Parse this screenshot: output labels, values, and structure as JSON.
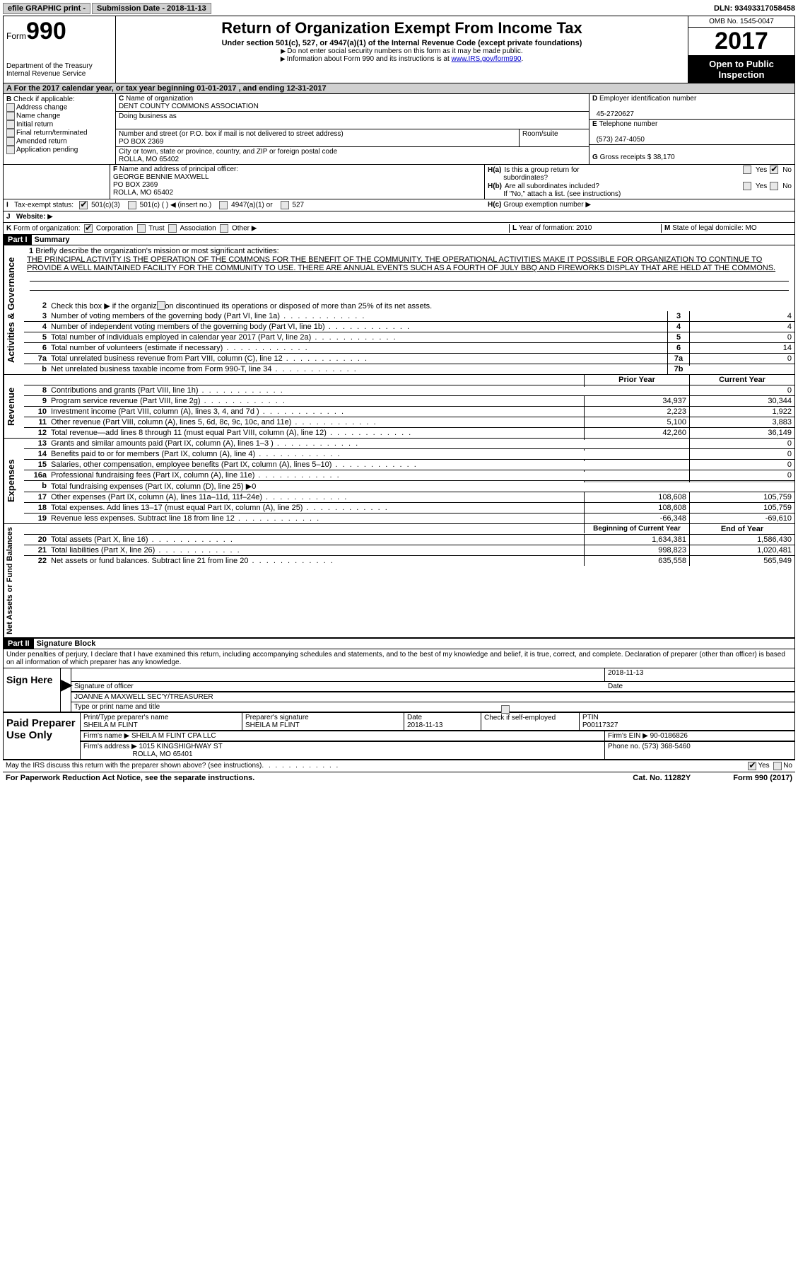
{
  "topbar": {
    "efile": "efile GRAPHIC print -",
    "sub_label": "Submission Date -",
    "sub_date": "2018-11-13",
    "dln_label": "DLN:",
    "dln": "93493317058458"
  },
  "header": {
    "form_prefix": "Form",
    "form_number": "990",
    "dept1": "Department of the Treasury",
    "dept2": "Internal Revenue Service",
    "title": "Return of Organization Exempt From Income Tax",
    "subtitle": "Under section 501(c), 527, or 4947(a)(1) of the Internal Revenue Code (except private foundations)",
    "note1": "Do not enter social security numbers on this form as it may be made public.",
    "note2_pre": "Information about Form 990 and its instructions is at ",
    "note2_link": "www.IRS.gov/form990",
    "omb": "OMB No. 1545-0047",
    "year": "2017",
    "open1": "Open to Public",
    "open2": "Inspection"
  },
  "A": {
    "text": "For the 2017 calendar year, or tax year beginning 01-01-2017   , and ending 12-31-2017"
  },
  "B": {
    "label": "Check if applicable:",
    "items": [
      "Address change",
      "Name change",
      "Initial return",
      "Final return/terminated",
      "Amended return",
      "Application pending"
    ]
  },
  "C": {
    "name_label": "Name of organization",
    "name": "DENT COUNTY COMMONS ASSOCIATION",
    "dba_label": "Doing business as",
    "street_label": "Number and street (or P.O. box if mail is not delivered to street address)",
    "room_label": "Room/suite",
    "street": "PO BOX 2369",
    "city_label": "City or town, state or province, country, and ZIP or foreign postal code",
    "city": "ROLLA, MO  65402"
  },
  "D": {
    "label": "Employer identification number",
    "value": "45-2720627"
  },
  "E": {
    "label": "Telephone number",
    "value": "(573) 247-4050"
  },
  "G": {
    "label": "Gross receipts $",
    "value": "38,170"
  },
  "F": {
    "label": "Name and address of principal officer:",
    "line1": "GEORGE BENNIE MAXWELL",
    "line2": "PO BOX 2369",
    "line3": "ROLLA, MO  65402"
  },
  "H": {
    "a": "Is this a group return for",
    "a2": "subordinates?",
    "b": "Are all subordinates included?",
    "b_note": "If \"No,\" attach a list. (see instructions)",
    "c": "Group exemption number",
    "yes": "Yes",
    "no": "No"
  },
  "I": {
    "label": "Tax-exempt status:",
    "opts": [
      "501(c)(3)",
      "501(c) (  ) ◀ (insert no.)",
      "4947(a)(1) or",
      "527"
    ]
  },
  "J": {
    "label": "Website:"
  },
  "K": {
    "label": "Form of organization:",
    "opts": [
      "Corporation",
      "Trust",
      "Association",
      "Other"
    ]
  },
  "L": {
    "label": "Year of formation:",
    "value": "2010"
  },
  "M": {
    "label": "State of legal domicile:",
    "value": "MO"
  },
  "partI": {
    "head": "Part I",
    "title": "Summary",
    "sec_gov": "Activities & Governance",
    "sec_rev": "Revenue",
    "sec_exp": "Expenses",
    "sec_net": "Net Assets or Fund Balances",
    "line1_label": "Briefly describe the organization's mission or most significant activities:",
    "mission": "THE PRINCIPAL ACTIVITY IS THE OPERATION OF THE COMMONS FOR THE BENEFIT OF THE COMMUNITY. THE OPERATIONAL ACTIVITIES MAKE IT POSSIBLE FOR ORGANIZATION TO CONTINUE TO PROVIDE A WELL MAINTAINED FACILITY FOR THE COMMUNITY TO USE. THERE ARE ANNUAL EVENTS SUCH AS A FOURTH OF JULY BBQ AND FIREWORKS DISPLAY THAT ARE HELD AT THE COMMONS.",
    "line2": "Check this box ▶        if the organization discontinued its operations or disposed of more than 25% of its net assets.",
    "lines_gov": [
      {
        "n": "3",
        "d": "Number of voting members of the governing body (Part VI, line 1a)",
        "box": "3",
        "v": "4"
      },
      {
        "n": "4",
        "d": "Number of independent voting members of the governing body (Part VI, line 1b)",
        "box": "4",
        "v": "4"
      },
      {
        "n": "5",
        "d": "Total number of individuals employed in calendar year 2017 (Part V, line 2a)",
        "box": "5",
        "v": "0"
      },
      {
        "n": "6",
        "d": "Total number of volunteers (estimate if necessary)",
        "box": "6",
        "v": "14"
      },
      {
        "n": "7a",
        "d": "Total unrelated business revenue from Part VIII, column (C), line 12",
        "box": "7a",
        "v": "0"
      },
      {
        "n": "b",
        "d": "Net unrelated business taxable income from Form 990-T, line 34",
        "box": "7b",
        "v": ""
      }
    ],
    "col_prior": "Prior Year",
    "col_curr": "Current Year",
    "lines_rev": [
      {
        "n": "8",
        "d": "Contributions and grants (Part VIII, line 1h)",
        "p": "",
        "c": "0"
      },
      {
        "n": "9",
        "d": "Program service revenue (Part VIII, line 2g)",
        "p": "34,937",
        "c": "30,344"
      },
      {
        "n": "10",
        "d": "Investment income (Part VIII, column (A), lines 3, 4, and 7d )",
        "p": "2,223",
        "c": "1,922"
      },
      {
        "n": "11",
        "d": "Other revenue (Part VIII, column (A), lines 5, 6d, 8c, 9c, 10c, and 11e)",
        "p": "5,100",
        "c": "3,883"
      },
      {
        "n": "12",
        "d": "Total revenue—add lines 8 through 11 (must equal Part VIII, column (A), line 12)",
        "p": "42,260",
        "c": "36,149"
      }
    ],
    "lines_exp": [
      {
        "n": "13",
        "d": "Grants and similar amounts paid (Part IX, column (A), lines 1–3 )",
        "p": "",
        "c": "0"
      },
      {
        "n": "14",
        "d": "Benefits paid to or for members (Part IX, column (A), line 4)",
        "p": "",
        "c": "0"
      },
      {
        "n": "15",
        "d": "Salaries, other compensation, employee benefits (Part IX, column (A), lines 5–10)",
        "p": "",
        "c": "0"
      },
      {
        "n": "16a",
        "d": "Professional fundraising fees (Part IX, column (A), line 11e)",
        "p": "",
        "c": "0"
      },
      {
        "n": "b",
        "d": "Total fundraising expenses (Part IX, column (D), line 25) ▶0",
        "p": "GREY",
        "c": "GREY"
      },
      {
        "n": "17",
        "d": "Other expenses (Part IX, column (A), lines 11a–11d, 11f–24e)",
        "p": "108,608",
        "c": "105,759"
      },
      {
        "n": "18",
        "d": "Total expenses. Add lines 13–17 (must equal Part IX, column (A), line 25)",
        "p": "108,608",
        "c": "105,759"
      },
      {
        "n": "19",
        "d": "Revenue less expenses. Subtract line 18 from line 12",
        "p": "-66,348",
        "c": "-69,610"
      }
    ],
    "col_beg": "Beginning of Current Year",
    "col_end": "End of Year",
    "lines_net": [
      {
        "n": "20",
        "d": "Total assets (Part X, line 16)",
        "p": "1,634,381",
        "c": "1,586,430"
      },
      {
        "n": "21",
        "d": "Total liabilities (Part X, line 26)",
        "p": "998,823",
        "c": "1,020,481"
      },
      {
        "n": "22",
        "d": "Net assets or fund balances. Subtract line 21 from line 20",
        "p": "635,558",
        "c": "565,949"
      }
    ]
  },
  "partII": {
    "head": "Part II",
    "title": "Signature Block",
    "perjury": "Under penalties of perjury, I declare that I have examined this return, including accompanying schedules and statements, and to the best of my knowledge and belief, it is true, correct, and complete. Declaration of preparer (other than officer) is based on all information of which preparer has any knowledge.",
    "sign_here": "Sign Here",
    "sig_officer_label": "Signature of officer",
    "date": "2018-11-13",
    "date_label": "Date",
    "officer_name": "JOANNE A MAXWELL SEC'Y/TREASURER",
    "officer_name_label": "Type or print name and title",
    "paid": "Paid Preparer Use Only",
    "prep_name_label": "Print/Type preparer's name",
    "prep_name": "SHEILA M FLINT",
    "prep_sig_label": "Preparer's signature",
    "prep_sig": "SHEILA M FLINT",
    "prep_date_label": "Date",
    "prep_date": "2018-11-13",
    "self_emp": "Check        if self-employed",
    "ptin_label": "PTIN",
    "ptin": "P00117327",
    "firm_name_label": "Firm's name     ▶",
    "firm_name": "SHEILA M FLINT CPA LLC",
    "firm_ein_label": "Firm's EIN ▶",
    "firm_ein": "90-0186826",
    "firm_addr_label": "Firm's address ▶",
    "firm_addr1": "1015 KINGSHIGHWAY ST",
    "firm_addr2": "ROLLA, MO  65401",
    "phone_label": "Phone no.",
    "phone": "(573) 368-5460",
    "discuss": "May the IRS discuss this return with the preparer shown above? (see instructions)",
    "yes": "Yes",
    "no": "No"
  },
  "footer": {
    "pra": "For Paperwork Reduction Act Notice, see the separate instructions.",
    "cat": "Cat. No. 11282Y",
    "form": "Form 990 (2017)"
  }
}
